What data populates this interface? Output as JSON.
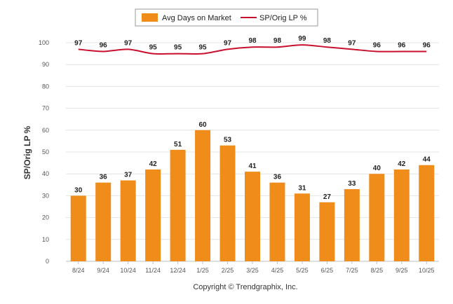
{
  "chart_data": {
    "type": "bar",
    "categories": [
      "8/24",
      "9/24",
      "10/24",
      "11/24",
      "12/24",
      "1/25",
      "2/25",
      "3/25",
      "4/25",
      "5/25",
      "6/25",
      "7/25",
      "8/25",
      "9/25",
      "10/25"
    ],
    "series": [
      {
        "name": "Avg Days on Market",
        "type": "bar",
        "color": "#f08c1a",
        "values": [
          30,
          36,
          37,
          42,
          51,
          60,
          53,
          41,
          36,
          31,
          27,
          33,
          40,
          42,
          44
        ]
      },
      {
        "name": "SP/Orig LP %",
        "type": "line",
        "color": "#c8102e",
        "values": [
          97,
          96,
          97,
          95,
          95,
          95,
          97,
          98,
          98,
          99,
          98,
          97,
          96,
          96,
          96
        ]
      }
    ],
    "ylabel": "SP/Orig LP %",
    "xlabel": "",
    "ylim": [
      0,
      100
    ],
    "yticks": [
      0,
      10,
      20,
      30,
      40,
      50,
      60,
      70,
      80,
      90,
      100
    ],
    "grid": true,
    "legend_position": "top-center",
    "credit": "Copyright © Trendgraphix, Inc."
  }
}
